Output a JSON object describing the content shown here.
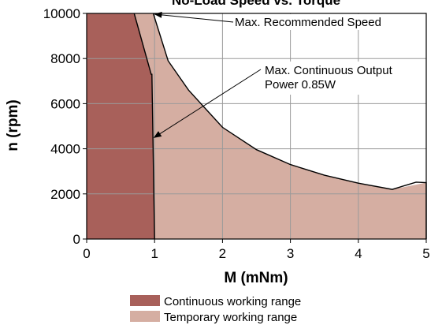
{
  "chart_data": {
    "type": "area",
    "title": "No-Load Speed vs. Torque",
    "xlabel": "M (mNm)",
    "ylabel": "n (rpm)",
    "xlim": [
      0,
      5
    ],
    "ylim": [
      0,
      10000
    ],
    "xticks": [
      0,
      1,
      2,
      3,
      4,
      5
    ],
    "yticks": [
      0,
      2000,
      4000,
      6000,
      8000,
      10000
    ],
    "grid": true,
    "series": [
      {
        "name": "Continuous working range",
        "color": "#a8605a",
        "x": [
          0,
          0.7,
          0.95,
          0.96,
          1.0,
          0
        ],
        "y": [
          10000,
          10000,
          7300,
          7300,
          0,
          0
        ]
      },
      {
        "name": "Temporary working range",
        "color": "#d5aea2",
        "x": [
          0.7,
          0.98,
          1.2,
          1.5,
          2.0,
          2.5,
          3.0,
          3.5,
          4.0,
          4.5,
          5.0,
          5.0,
          1.0,
          0.96,
          0.95
        ],
        "y": [
          10000,
          10000,
          7900,
          6600,
          4950,
          3960,
          3300,
          2830,
          2475,
          2200,
          2500,
          0,
          0,
          7300,
          7300
        ]
      }
    ],
    "annotations": [
      {
        "lines": [
          "Max. Recommended Speed"
        ],
        "target": [
          0.98,
          10000
        ]
      },
      {
        "lines": [
          "Max. Continuous Output",
          "Power 0.85W"
        ],
        "target": [
          0.97,
          4500
        ]
      }
    ],
    "legend": {
      "position": "bottom",
      "items": [
        {
          "label": "Continuous working range",
          "color": "#a8605a"
        },
        {
          "label": "Temporary working range",
          "color": "#d5aea2"
        }
      ]
    }
  }
}
